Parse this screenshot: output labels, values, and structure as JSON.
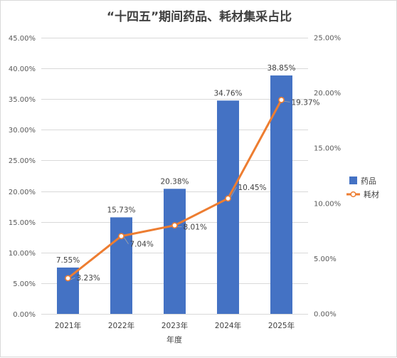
{
  "chart_data": {
    "type": "bar",
    "title": "“十四五”期间药品、耗材集采占比",
    "xlabel": "年度",
    "categories": [
      "2021年",
      "2022年",
      "2023年",
      "2024年",
      "2025年"
    ],
    "series": [
      {
        "name": "药品",
        "type": "bar",
        "axis": "left",
        "values": [
          7.55,
          15.73,
          20.38,
          34.76,
          38.85
        ],
        "labels": [
          "7.55%",
          "15.73%",
          "20.38%",
          "34.76%",
          "38.85%"
        ],
        "color": "#4472c4"
      },
      {
        "name": "耗材",
        "type": "line",
        "axis": "right",
        "values": [
          3.23,
          7.04,
          8.01,
          10.45,
          19.37
        ],
        "labels": [
          "3.23%",
          "7.04%",
          "8.01%",
          "10.45%",
          "19.37%"
        ],
        "color": "#ed7d31"
      }
    ],
    "y_left": {
      "ylim": [
        0,
        45
      ],
      "ticks": [
        "0.00%",
        "5.00%",
        "10.00%",
        "15.00%",
        "20.00%",
        "25.00%",
        "30.00%",
        "35.00%",
        "40.00%",
        "45.00%"
      ]
    },
    "y_right": {
      "ylim": [
        0,
        25
      ],
      "ticks": [
        "0.00%",
        "5.00%",
        "10.00%",
        "15.00%",
        "20.00%",
        "25.00%"
      ]
    },
    "grid": true,
    "legend": "right"
  }
}
